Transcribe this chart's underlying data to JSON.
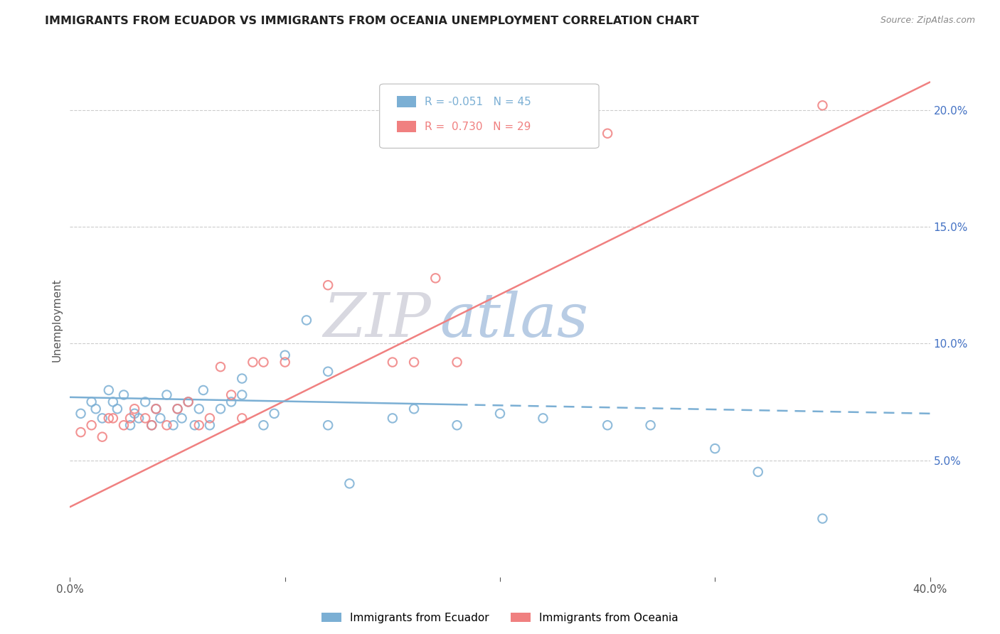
{
  "title": "IMMIGRANTS FROM ECUADOR VS IMMIGRANTS FROM OCEANIA UNEMPLOYMENT CORRELATION CHART",
  "source": "Source: ZipAtlas.com",
  "ylabel": "Unemployment",
  "x_min": 0.0,
  "x_max": 0.4,
  "y_min": 0.0,
  "y_max": 0.22,
  "ecuador_color": "#7bafd4",
  "oceania_color": "#f08080",
  "ecuador_R": -0.051,
  "ecuador_N": 45,
  "oceania_R": 0.73,
  "oceania_N": 29,
  "ecuador_scatter_x": [
    0.005,
    0.01,
    0.012,
    0.015,
    0.018,
    0.02,
    0.022,
    0.025,
    0.028,
    0.03,
    0.032,
    0.035,
    0.038,
    0.04,
    0.042,
    0.045,
    0.048,
    0.05,
    0.052,
    0.055,
    0.058,
    0.06,
    0.062,
    0.065,
    0.07,
    0.075,
    0.08,
    0.09,
    0.095,
    0.1,
    0.11,
    0.12,
    0.13,
    0.15,
    0.16,
    0.18,
    0.2,
    0.22,
    0.25,
    0.27,
    0.3,
    0.32,
    0.35,
    0.12,
    0.08
  ],
  "ecuador_scatter_y": [
    0.07,
    0.075,
    0.072,
    0.068,
    0.08,
    0.075,
    0.072,
    0.078,
    0.065,
    0.07,
    0.068,
    0.075,
    0.065,
    0.072,
    0.068,
    0.078,
    0.065,
    0.072,
    0.068,
    0.075,
    0.065,
    0.072,
    0.08,
    0.065,
    0.072,
    0.075,
    0.085,
    0.065,
    0.07,
    0.095,
    0.11,
    0.065,
    0.04,
    0.068,
    0.072,
    0.065,
    0.07,
    0.068,
    0.065,
    0.065,
    0.055,
    0.045,
    0.025,
    0.088,
    0.078
  ],
  "oceania_scatter_x": [
    0.005,
    0.01,
    0.015,
    0.018,
    0.02,
    0.025,
    0.028,
    0.03,
    0.035,
    0.038,
    0.04,
    0.045,
    0.05,
    0.055,
    0.06,
    0.065,
    0.07,
    0.075,
    0.08,
    0.085,
    0.09,
    0.1,
    0.12,
    0.15,
    0.16,
    0.17,
    0.18,
    0.25,
    0.35
  ],
  "oceania_scatter_y": [
    0.062,
    0.065,
    0.06,
    0.068,
    0.068,
    0.065,
    0.068,
    0.072,
    0.068,
    0.065,
    0.072,
    0.065,
    0.072,
    0.075,
    0.065,
    0.068,
    0.09,
    0.078,
    0.068,
    0.092,
    0.092,
    0.092,
    0.125,
    0.092,
    0.092,
    0.128,
    0.092,
    0.19,
    0.202
  ],
  "ecuador_line_x0": 0.0,
  "ecuador_line_x_solid_end": 0.18,
  "ecuador_line_x1": 0.4,
  "ecuador_line_y0": 0.077,
  "ecuador_line_y1": 0.07,
  "oceania_line_x0": 0.0,
  "oceania_line_x1": 0.4,
  "oceania_line_y0": 0.03,
  "oceania_line_y1": 0.212
}
